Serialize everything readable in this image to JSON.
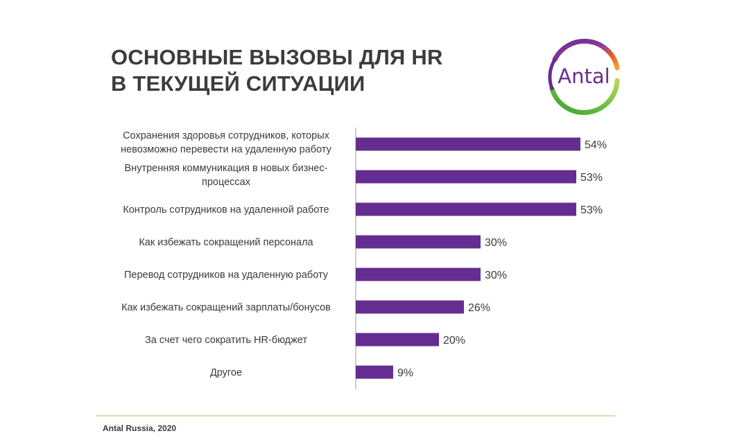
{
  "title": {
    "line1": "ОСНОВНЫЕ ВЫЗОВЫ ДЛЯ HR",
    "line2": "В ТЕКУЩЕЙ СИТУАЦИИ"
  },
  "logo": {
    "text": "Antal"
  },
  "source": "Antal Russia, 2020",
  "colors": {
    "bar": "#652d91",
    "axis": "#bfbfbf",
    "footer_line": "#cfe3b0"
  },
  "chart_data": {
    "type": "bar",
    "orientation": "horizontal",
    "categories": [
      [
        "Сохранения здоровья сотрудников, которых",
        "невозможно перевести на удаленную работу"
      ],
      [
        "Внутренняя коммуникация в новых бизнес-",
        "процессах"
      ],
      [
        "Контроль сотрудников на удаленной работе"
      ],
      [
        "Как избежать сокращений персонала"
      ],
      [
        "Перевод сотрудников на удаленную работу"
      ],
      [
        "Как избежать сокращений зарплаты/бонусов"
      ],
      [
        "За счет чего сократить HR-бюджет"
      ],
      [
        "Другое"
      ]
    ],
    "values": [
      54,
      53,
      53,
      30,
      30,
      26,
      20,
      9
    ],
    "value_labels": [
      "54%",
      "53%",
      "53%",
      "30%",
      "30%",
      "26%",
      "20%",
      "9%"
    ],
    "unit": "%",
    "xlim": [
      0,
      54
    ],
    "grid": false,
    "legend": "none"
  }
}
